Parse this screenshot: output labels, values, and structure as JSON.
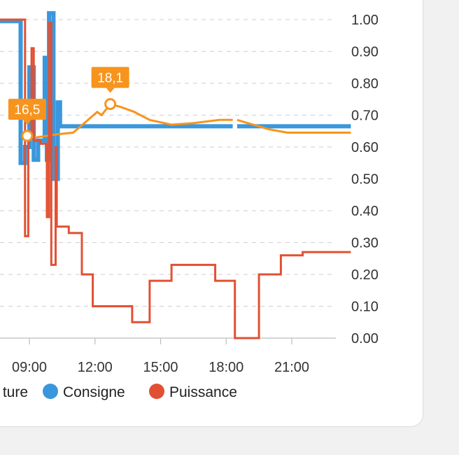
{
  "chart_data": {
    "type": "line",
    "title": "",
    "xlabel": "",
    "ylabel": "",
    "xlim": [
      7.0,
      23.7
    ],
    "ylim": [
      0,
      1
    ],
    "grid": true,
    "legend_position": "bottom",
    "y_ticks": [
      "1.00",
      "0.90",
      "0.80",
      "0.70",
      "0.60",
      "0.50",
      "0.40",
      "0.30",
      "0.20",
      "0.10",
      "0.00"
    ],
    "y_tick_values": [
      1.0,
      0.9,
      0.8,
      0.7,
      0.6,
      0.5,
      0.4,
      0.3,
      0.2,
      0.1,
      0.0
    ],
    "x_ticks": [
      "09:00",
      "12:00",
      "15:00",
      "18:00",
      "21:00"
    ],
    "x_tick_values": [
      9,
      12,
      15,
      18,
      21
    ],
    "colors": {
      "temperature": "#f7941d",
      "consigne": "#3a97dc",
      "puissance": "#e25033"
    },
    "legend": [
      {
        "key": "temperature",
        "label": "ture"
      },
      {
        "key": "consigne",
        "label": "Consigne"
      },
      {
        "key": "puissance",
        "label": "Puissance"
      }
    ],
    "annotations": [
      {
        "label": "16,5",
        "x": 8.9,
        "y": 0.635,
        "series": "temperature"
      },
      {
        "label": "18,1",
        "x": 12.7,
        "y": 0.735,
        "series": "temperature"
      }
    ],
    "series": [
      {
        "key": "temperature",
        "name": "",
        "points": [
          [
            8.9,
            0.635
          ],
          [
            9.3,
            0.63
          ],
          [
            10.3,
            0.64
          ],
          [
            11.0,
            0.645
          ],
          [
            11.6,
            0.68
          ],
          [
            12.1,
            0.71
          ],
          [
            12.3,
            0.7
          ],
          [
            12.7,
            0.735
          ],
          [
            13.2,
            0.725
          ],
          [
            13.8,
            0.71
          ],
          [
            14.5,
            0.685
          ],
          [
            15.5,
            0.67
          ],
          [
            16.5,
            0.675
          ],
          [
            17.7,
            0.685
          ],
          [
            18.3,
            0.685
          ],
          null,
          [
            18.5,
            0.685
          ],
          [
            19.0,
            0.675
          ],
          [
            20.0,
            0.655
          ],
          [
            20.8,
            0.645
          ],
          [
            23.7,
            0.645
          ]
        ]
      },
      {
        "key": "consigne",
        "name": "",
        "points": [
          [
            7.0,
            0.995
          ],
          [
            8.6,
            0.995
          ],
          [
            8.6,
            0.55
          ],
          [
            8.8,
            0.55
          ],
          [
            8.8,
            0.6
          ],
          [
            9.0,
            0.6
          ],
          [
            9.0,
            0.85
          ],
          [
            9.2,
            0.85
          ],
          [
            9.2,
            0.56
          ],
          [
            9.4,
            0.56
          ],
          [
            9.4,
            0.62
          ],
          [
            9.7,
            0.62
          ],
          [
            9.7,
            0.88
          ],
          [
            9.8,
            0.88
          ],
          [
            9.8,
            0.56
          ],
          [
            9.9,
            0.56
          ],
          [
            9.9,
            1.02
          ],
          [
            10.1,
            1.02
          ],
          [
            10.1,
            0.5
          ],
          [
            10.3,
            0.5
          ],
          [
            10.3,
            0.74
          ],
          [
            10.4,
            0.74
          ],
          [
            10.4,
            0.665
          ],
          [
            18.3,
            0.665
          ],
          null,
          [
            18.5,
            0.665
          ],
          [
            23.7,
            0.665
          ]
        ]
      },
      {
        "key": "puissance",
        "name": "",
        "points": [
          [
            7.0,
            1.0
          ],
          [
            8.8,
            1.0
          ],
          [
            8.8,
            0.32
          ],
          [
            8.95,
            0.32
          ],
          [
            8.95,
            0.63
          ],
          [
            9.1,
            0.63
          ],
          [
            9.1,
            0.91
          ],
          [
            9.2,
            0.91
          ],
          [
            9.2,
            0.62
          ],
          [
            9.5,
            0.62
          ],
          [
            9.5,
            0.61
          ],
          [
            9.8,
            0.61
          ],
          [
            9.8,
            0.38
          ],
          [
            9.9,
            0.38
          ],
          [
            9.9,
            0.99
          ],
          [
            10.0,
            0.99
          ],
          [
            10.0,
            0.23
          ],
          [
            10.2,
            0.23
          ],
          [
            10.2,
            0.6
          ],
          [
            10.25,
            0.6
          ],
          [
            10.25,
            0.35
          ],
          [
            10.8,
            0.35
          ],
          [
            10.8,
            0.33
          ],
          [
            11.4,
            0.33
          ],
          [
            11.4,
            0.2
          ],
          [
            11.9,
            0.2
          ],
          [
            11.9,
            0.1
          ],
          [
            13.7,
            0.1
          ],
          [
            13.7,
            0.05
          ],
          [
            14.5,
            0.05
          ],
          [
            14.5,
            0.18
          ],
          [
            15.5,
            0.18
          ],
          [
            15.5,
            0.23
          ],
          [
            17.5,
            0.23
          ],
          [
            17.5,
            0.18
          ],
          [
            18.4,
            0.18
          ],
          [
            18.4,
            0.0
          ],
          [
            19.5,
            0.0
          ],
          [
            19.5,
            0.2
          ],
          [
            20.5,
            0.2
          ],
          [
            20.5,
            0.26
          ],
          [
            21.5,
            0.26
          ],
          [
            21.5,
            0.27
          ],
          [
            23.7,
            0.27
          ]
        ]
      }
    ]
  }
}
